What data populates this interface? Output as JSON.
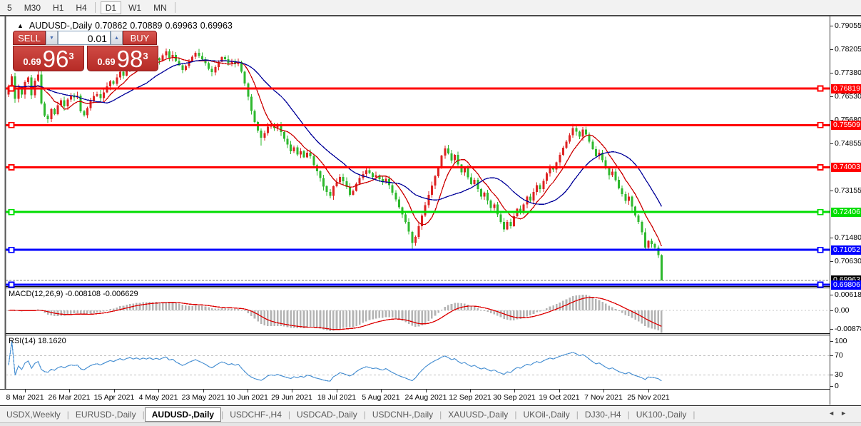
{
  "toolbar": {
    "timeframes": [
      "5",
      "M30",
      "H1",
      "H4",
      "D1",
      "W1",
      "MN"
    ],
    "active": "D1"
  },
  "chart_header": {
    "symbol": "AUDUSD-,Daily",
    "open": "0.70862",
    "high": "0.70889",
    "low": "0.69963",
    "close": "0.69963"
  },
  "trade_panel": {
    "sell_label": "SELL",
    "buy_label": "BUY",
    "lot": "0.01",
    "sell_price_small": "0.69",
    "sell_price_big": "96",
    "sell_price_sup": "3",
    "buy_price_small": "0.69",
    "buy_price_big": "98",
    "buy_price_sup": "3",
    "lot_down_icon": "▼",
    "lot_up_icon": "▲"
  },
  "price_axis": {
    "plain_labels": [
      "0.79055",
      "0.78205",
      "0.77380",
      "0.76530",
      "0.75680",
      "0.74855",
      "0.73155",
      "0.71480",
      "0.70630"
    ],
    "current_price_chip": {
      "text": "0.69963",
      "color": "#000000"
    }
  },
  "indicators": {
    "macd": {
      "title": "MACD(12,26,9)",
      "values": "-0.008108 -0.006629",
      "axis_labels": [
        "0.006181",
        "0.00",
        "-0.00878"
      ],
      "fast": 12,
      "slow": 26,
      "signal": 9
    },
    "rsi": {
      "title": "RSI(14)",
      "value": "18.1620",
      "axis_labels": [
        "100",
        "70",
        "30",
        "0"
      ],
      "period": 14,
      "levels": [
        70,
        30
      ]
    }
  },
  "dates": [
    "8 Mar 2021",
    "26 Mar 2021",
    "15 Apr 2021",
    "4 May 2021",
    "23 May 2021",
    "10 Jun 2021",
    "29 Jun 2021",
    "18 Jul 2021",
    "5 Aug 2021",
    "24 Aug 2021",
    "12 Sep 2021",
    "30 Sep 2021",
    "19 Oct 2021",
    "7 Nov 2021",
    "25 Nov 2021"
  ],
  "tabs": {
    "items": [
      "USDX,Weekly",
      "EURUSD-,Daily",
      "AUDUSD-,Daily",
      "USDCHF-,H4",
      "USDCAD-,Daily",
      "USDCNH-,Daily",
      "XAUUSD-,Daily",
      "UKOil-,Daily",
      "DJ30-,H4",
      "UK100-,Daily"
    ],
    "active_index": 2,
    "scroll_left_icon": "◄",
    "scroll_right_icon": "►"
  },
  "chart_data": {
    "type": "candlestick",
    "symbol": "AUDUSD-",
    "timeframe": "Daily",
    "ohlc_current": {
      "open": 0.70862,
      "high": 0.70889,
      "low": 0.69963,
      "close": 0.69963
    },
    "first_open": 0.766,
    "closes": [
      0.769,
      0.7725,
      0.7645,
      0.7685,
      0.766,
      0.7705,
      0.7722,
      0.7658,
      0.771,
      0.7732,
      0.7628,
      0.7585,
      0.7572,
      0.7608,
      0.759,
      0.7622,
      0.764,
      0.7618,
      0.7642,
      0.7658,
      0.765,
      0.7656,
      0.76,
      0.7586,
      0.7612,
      0.7638,
      0.7655,
      0.7662,
      0.7648,
      0.7668,
      0.769,
      0.7708,
      0.7698,
      0.7722,
      0.7742,
      0.7728,
      0.7752,
      0.7768,
      0.7755,
      0.7772,
      0.776,
      0.7778,
      0.777,
      0.7788,
      0.7775,
      0.779,
      0.7782,
      0.78,
      0.7815,
      0.7792,
      0.7802,
      0.778,
      0.7765,
      0.7748,
      0.7762,
      0.778,
      0.7795,
      0.781,
      0.7798,
      0.7786,
      0.7772,
      0.7752,
      0.774,
      0.7758,
      0.7778,
      0.7794,
      0.7786,
      0.7772,
      0.778,
      0.7768,
      0.7776,
      0.7742,
      0.77,
      0.7652,
      0.7602,
      0.7562,
      0.7532,
      0.7506,
      0.7522,
      0.7546,
      0.7553,
      0.7541,
      0.755,
      0.7526,
      0.7502,
      0.7482,
      0.7458,
      0.7472,
      0.7446,
      0.7458,
      0.7436,
      0.7452,
      0.744,
      0.7408,
      0.7386,
      0.7362,
      0.7332,
      0.7312,
      0.7298,
      0.7332,
      0.7346,
      0.7366,
      0.735,
      0.733,
      0.7302,
      0.7316,
      0.7342,
      0.7362,
      0.7376,
      0.739,
      0.738,
      0.7366,
      0.7372,
      0.7358,
      0.7348,
      0.736,
      0.7336,
      0.731,
      0.7285,
      0.7258,
      0.7232,
      0.7205,
      0.717,
      0.713,
      0.7152,
      0.719,
      0.7228,
      0.7265,
      0.7302,
      0.7335,
      0.7368,
      0.7398,
      0.7442,
      0.7468,
      0.745,
      0.7425,
      0.7445,
      0.741,
      0.7382,
      0.7398,
      0.7365,
      0.734,
      0.7356,
      0.7322,
      0.7296,
      0.731,
      0.7282,
      0.7255,
      0.7268,
      0.7232,
      0.7205,
      0.7178,
      0.7205,
      0.719,
      0.7225,
      0.7252,
      0.724,
      0.7268,
      0.7295,
      0.7282,
      0.7312,
      0.7336,
      0.7322,
      0.7352,
      0.7378,
      0.7402,
      0.7392,
      0.7418,
      0.7445,
      0.747,
      0.7492,
      0.7515,
      0.754,
      0.7528,
      0.751,
      0.7535,
      0.7518,
      0.7492,
      0.7465,
      0.744,
      0.7452,
      0.7426,
      0.7398,
      0.7372,
      0.7385,
      0.7355,
      0.7325,
      0.7305,
      0.728,
      0.7295,
      0.726,
      0.7228,
      0.7205,
      0.7168,
      0.7113,
      0.7138,
      0.7126,
      0.7113,
      0.70862,
      0.69963
    ],
    "high_overrides": {
      "48": 0.7825,
      "133": 0.7478,
      "172": 0.7556,
      "199": 0.70889
    },
    "low_overrides": {
      "77": 0.7478,
      "98": 0.7289,
      "123": 0.7106,
      "151": 0.717,
      "199": 0.69963
    },
    "horizontal_lines": [
      {
        "price": 0.76819,
        "color": "#ff0000"
      },
      {
        "price": 0.75509,
        "color": "#ff0000"
      },
      {
        "price": 0.74003,
        "color": "#ff0000"
      },
      {
        "price": 0.72406,
        "color": "#00dd00"
      },
      {
        "price": 0.71052,
        "color": "#0000ff"
      },
      {
        "price": 0.69806,
        "color": "#0000ff"
      }
    ],
    "moving_averages": [
      {
        "period": 8,
        "color": "#cc0000"
      },
      {
        "period": 21,
        "color": "#000099"
      }
    ],
    "bull_color": "#dd2222",
    "bear_color": "#2eb82e",
    "macd_hist_color": "#b4b4b4",
    "macd_signal_color": "#dd0000",
    "rsi_color": "#4f94d4",
    "bid_price": 0.69963
  }
}
